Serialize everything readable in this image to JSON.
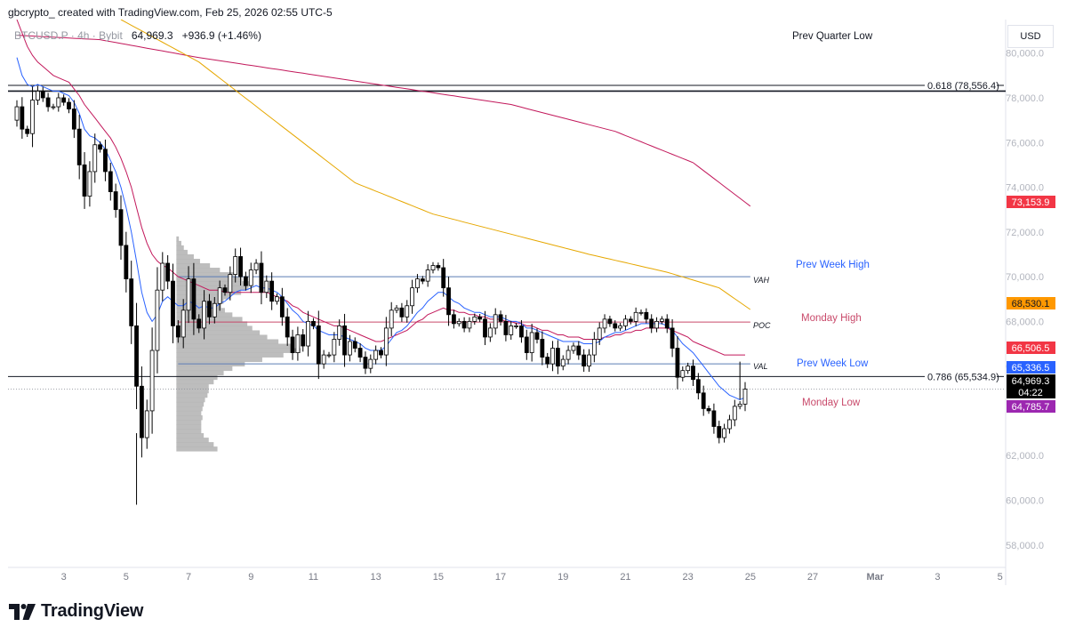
{
  "header": {
    "text": "gbcrypto_ created with TradingView.com, Feb 25, 2026 02:55 UTC-5"
  },
  "legend": {
    "symbol": "BTCUSD.P · 4h · Bybit",
    "price": "64,969.3",
    "change": "+936.9 (+1.46%)"
  },
  "currency": "USD",
  "brand": {
    "name": "TradingView"
  },
  "chart_data": {
    "type": "candlestick",
    "title": "BTCUSD.P · 4h · Bybit",
    "ylim": [
      56200,
      81500
    ],
    "y_ticks": [
      "80,000.0",
      "78,000.0",
      "76,000.0",
      "74,000.0",
      "72,000.0",
      "70,000.0",
      "68,000.0",
      "66,000.0",
      "62,000.0",
      "60,000.0",
      "58,000.0"
    ],
    "x_ticks": [
      {
        "label": "3",
        "bar": 9
      },
      {
        "label": "5",
        "bar": 21
      },
      {
        "label": "7",
        "bar": 33
      },
      {
        "label": "9",
        "bar": 45
      },
      {
        "label": "11",
        "bar": 57
      },
      {
        "label": "13",
        "bar": 69
      },
      {
        "label": "15",
        "bar": 81
      },
      {
        "label": "17",
        "bar": 93
      },
      {
        "label": "19",
        "bar": 105
      },
      {
        "label": "21",
        "bar": 117
      },
      {
        "label": "23",
        "bar": 129
      },
      {
        "label": "25",
        "bar": 141
      },
      {
        "label": "27",
        "bar": 153
      },
      {
        "label": "Mar",
        "bar": 165
      },
      {
        "label": "3",
        "bar": 177
      },
      {
        "label": "5",
        "bar": 189
      }
    ],
    "close": [
      77600,
      76600,
      76400,
      77900,
      78300,
      78000,
      77600,
      77600,
      78000,
      77800,
      77500,
      76600,
      75000,
      73600,
      74700,
      75900,
      75700,
      74700,
      73800,
      73000,
      71400,
      69900,
      67800,
      65100,
      62800,
      64000,
      66700,
      69400,
      70600,
      69800,
      67800,
      67300,
      68500,
      69900,
      68100,
      67700,
      68900,
      68200,
      68800,
      69500,
      69300,
      70100,
      70900,
      70000,
      69600,
      70300,
      70600,
      69300,
      69800,
      68900,
      69100,
      68200,
      67300,
      66600,
      67400,
      66900,
      68000,
      67800,
      66100,
      66500,
      66500,
      67200,
      67800,
      66500,
      67100,
      66800,
      66400,
      65900,
      66300,
      66700,
      66500,
      67700,
      68500,
      68600,
      68200,
      68700,
      69500,
      69900,
      69800,
      70300,
      70500,
      70400,
      69500,
      68300,
      67900,
      68000,
      67700,
      68000,
      68200,
      68100,
      67300,
      67700,
      68300,
      68000,
      67400,
      67800,
      67800,
      67300,
      66600,
      67500,
      67200,
      66400,
      66100,
      66800,
      66000,
      66300,
      66700,
      66900,
      66500,
      66000,
      66500,
      67200,
      67700,
      68100,
      67900,
      67700,
      67800,
      68100,
      68000,
      68400,
      68400,
      68100,
      67700,
      68000,
      68100,
      67700,
      66800,
      65500,
      65800,
      66000,
      65400,
      64800,
      64100,
      64000,
      63300,
      62800,
      63200,
      63600,
      64200,
      64300,
      64969.3
    ],
    "ema_fast": [
      79800,
      79000,
      78600,
      78500,
      78600,
      78500,
      78400,
      78300,
      78300,
      78200,
      78100,
      77800,
      77300,
      76600,
      76300,
      76200,
      76000,
      75700,
      75200,
      74700,
      74000,
      73100,
      72000,
      70700,
      69300,
      68400,
      68000,
      68300,
      68900,
      69100,
      68900,
      68700,
      68700,
      68900,
      68800,
      68600,
      68700,
      68600,
      68600,
      68800,
      68900,
      69100,
      69300,
      69400,
      69400,
      69500,
      69600,
      69500,
      69500,
      69400,
      69300,
      69100,
      68800,
      68500,
      68300,
      68000,
      67900,
      67800,
      67600,
      67500,
      67400,
      67400,
      67400,
      67300,
      67200,
      67100,
      67000,
      66800,
      66700,
      66700,
      66700,
      66900,
      67200,
      67500,
      67600,
      67800,
      68100,
      68400,
      68600,
      68900,
      69100,
      69300,
      69300,
      69100,
      68900,
      68800,
      68600,
      68500,
      68400,
      68400,
      68300,
      68200,
      68200,
      68200,
      68100,
      68000,
      68000,
      67900,
      67700,
      67700,
      67600,
      67500,
      67400,
      67300,
      67200,
      67100,
      67100,
      67100,
      67100,
      67000,
      67000,
      67000,
      67100,
      67300,
      67400,
      67500,
      67500,
      67600,
      67700,
      67800,
      67900,
      67900,
      67900,
      67900,
      67900,
      67800,
      67600,
      67300,
      67000,
      66800,
      66600,
      66300,
      66000,
      65700,
      65400,
      65100,
      64900,
      64700,
      64600,
      64500,
      64600
    ],
    "ema_slow": [
      81500,
      80900,
      80300,
      79900,
      79600,
      79400,
      79200,
      79000,
      78900,
      78800,
      78700,
      78400,
      78100,
      77700,
      77400,
      77100,
      76800,
      76500,
      76200,
      75800,
      75300,
      74700,
      74000,
      73100,
      72200,
      71500,
      71000,
      70700,
      70500,
      70400,
      70200,
      70000,
      69900,
      69800,
      69700,
      69600,
      69500,
      69400,
      69400,
      69400,
      69300,
      69300,
      69300,
      69300,
      69300,
      69300,
      69300,
      69300,
      69300,
      69200,
      69100,
      69000,
      68900,
      68700,
      68600,
      68400,
      68300,
      68200,
      68100,
      68000,
      67900,
      67800,
      67800,
      67700,
      67600,
      67500,
      67400,
      67300,
      67200,
      67100,
      67100,
      67200,
      67300,
      67400,
      67500,
      67600,
      67800,
      68000,
      68100,
      68300,
      68400,
      68500,
      68600,
      68500,
      68500,
      68400,
      68400,
      68300,
      68300,
      68200,
      68200,
      68100,
      68100,
      68100,
      68000,
      68000,
      67900,
      67900,
      67800,
      67800,
      67700,
      67600,
      67600,
      67500,
      67400,
      67400,
      67300,
      67300,
      67300,
      67200,
      67200,
      67200,
      67200,
      67300,
      67300,
      67400,
      67400,
      67500,
      67500,
      67600,
      67600,
      67700,
      67700,
      67700,
      67700,
      67700,
      67600,
      67500,
      67400,
      67300,
      67100,
      67000,
      66900,
      66800,
      66700,
      66600,
      66500,
      66500,
      66500,
      66500,
      66500
    ],
    "ma_red_anchors": [
      [
        0,
        80800
      ],
      [
        16,
        80600
      ],
      [
        35,
        79800
      ],
      [
        55,
        79100
      ],
      [
        75,
        78400
      ],
      [
        95,
        77700
      ],
      [
        115,
        76500
      ],
      [
        130,
        75100
      ],
      [
        141,
        73153.9
      ]
    ],
    "ma_orange_anchors": [
      [
        20,
        81500
      ],
      [
        35,
        79600
      ],
      [
        50,
        76900
      ],
      [
        65,
        74200
      ],
      [
        80,
        72800
      ],
      [
        95,
        71900
      ],
      [
        110,
        71000
      ],
      [
        125,
        70200
      ],
      [
        135,
        69500
      ],
      [
        141,
        68530.1
      ]
    ],
    "horizontal_levels": [
      {
        "label": "0.618 (78,556.4)",
        "value": 78556.4,
        "color": "#131722"
      },
      {
        "label": "0.786 (65,534.9)",
        "value": 65534.9,
        "color": "#131722"
      },
      {
        "label": "Prev Week High",
        "value": 70000,
        "color": "#5b7db5"
      },
      {
        "label": "Prev Week Low",
        "value": 66100,
        "color": "#5b7db5"
      },
      {
        "label": "Monday High",
        "value": 67970,
        "color": "#c94a6b"
      },
      {
        "label": "Prev Quarter Low",
        "value": 78300,
        "color": "#131722"
      }
    ],
    "annotations": [
      {
        "text": "Prev Quarter Low",
        "color": "#131722"
      },
      {
        "text": "Prev Week High",
        "color": "#2962ff"
      },
      {
        "text": "Monday High",
        "color": "#c94a6b"
      },
      {
        "text": "Prev Week Low",
        "color": "#2962ff"
      },
      {
        "text": "Monday Low",
        "color": "#c94a6b"
      },
      {
        "text": "VAH",
        "color": "#131722"
      },
      {
        "text": "POC",
        "color": "#131722"
      },
      {
        "text": "VAL",
        "color": "#131722"
      }
    ],
    "price_tags": [
      {
        "text": "73,153.9",
        "value": 73153.9,
        "bg": "#f23645",
        "fg": "#ffffff"
      },
      {
        "text": "68,530.1",
        "value": 68530.1,
        "bg": "#ff9800",
        "fg": "#131722"
      },
      {
        "text": "66,506.5",
        "value": 66506.5,
        "bg": "#f23645",
        "fg": "#ffffff"
      },
      {
        "text": "65,336.5",
        "value": 65336.5,
        "bg": "#2962ff",
        "fg": "#ffffff"
      },
      {
        "text": "64,969.3",
        "value": 64969.3,
        "bg": "#000000",
        "fg": "#ffffff"
      },
      {
        "text": "04:22",
        "value": 64500,
        "bg": "#000000",
        "fg": "#ffffff"
      },
      {
        "text": "64,785.7",
        "value": 64785.7,
        "bg": "#9c27b0",
        "fg": "#ffffff"
      }
    ],
    "volume_profile": {
      "levels": [
        62300,
        62500,
        62700,
        62900,
        63100,
        63300,
        63500,
        63700,
        63900,
        64100,
        64300,
        64500,
        64700,
        64900,
        65100,
        65300,
        65500,
        65700,
        65900,
        66100,
        66300,
        66500,
        66700,
        66900,
        67100,
        67300,
        67500,
        67700,
        67900,
        68100,
        68300,
        68500,
        68700,
        68900,
        69100,
        69300,
        69500,
        69700,
        69900,
        70100,
        70300,
        70500,
        70700,
        70900,
        71100,
        71300,
        71500,
        71700
      ],
      "volumes": [
        0.33,
        0.3,
        0.26,
        0.22,
        0.2,
        0.2,
        0.2,
        0.21,
        0.2,
        0.21,
        0.22,
        0.23,
        0.25,
        0.26,
        0.26,
        0.3,
        0.33,
        0.38,
        0.45,
        0.55,
        0.69,
        0.86,
        1.0,
        0.95,
        0.82,
        0.73,
        0.67,
        0.61,
        0.57,
        0.53,
        0.45,
        0.39,
        0.36,
        0.38,
        0.43,
        0.52,
        0.58,
        0.59,
        0.53,
        0.46,
        0.35,
        0.27,
        0.19,
        0.14,
        0.09,
        0.06,
        0.04,
        0.02
      ]
    },
    "colors": {
      "up": "#ffffff",
      "down": "#000000",
      "ema_fast": "#2962ff",
      "ema_slow": "#c2185b",
      "ma_red": "#c2185b",
      "ma_orange": "#e6a700",
      "profile": "#b2b2b2"
    }
  }
}
